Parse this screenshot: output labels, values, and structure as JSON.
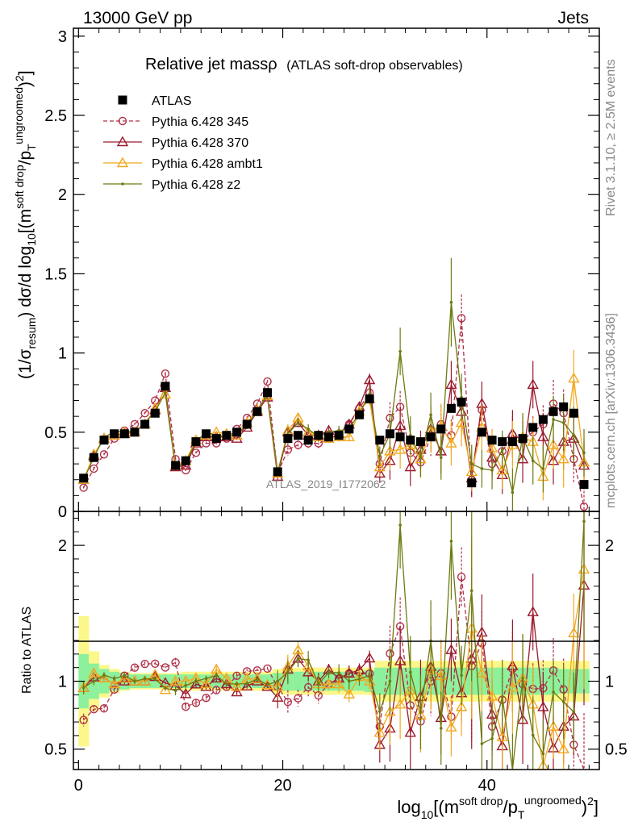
{
  "header": {
    "energy_label": "13000 GeV pp",
    "process_label": "Jets"
  },
  "side_labels": {
    "rivet": "Rivet 3.1.10, ≥ 2.5M events",
    "source": "mcplots.cern.ch [arXiv:1306.3436]"
  },
  "watermark": "ATLAS_2019_I1772062",
  "colors": {
    "atlas": "#000000",
    "p345": "#b03048",
    "p370": "#9c1a2e",
    "ambt1": "#f2a81e",
    "z2": "#6e7a10",
    "band_inner": "#8cf09c",
    "band_outer": "#fbf78a"
  },
  "chart_data": {
    "type": "line",
    "title_main": "Relative jet massρ",
    "title_sub": "(ATLAS soft-drop observables)",
    "y_label_main": {
      "lead": "(1/σ",
      "sub1": "resum",
      "mid": ") dσ/d log",
      "sub2": "10",
      "tail": "[(m",
      "sup1": "soft drop",
      "tail2": "/p",
      "sub3": "T",
      "sup2": "ungroomed",
      "tail3": ")",
      "sup3": "2",
      "end": "]"
    },
    "y_label_ratio": "Ratio to ATLAS",
    "x_label": {
      "lead": "log",
      "sub1": "10",
      "mid": "[(m",
      "sup1": "soft drop",
      "mid2": "/p",
      "sub2": "T",
      "sup2": "ungroomed",
      "tail": ")",
      "sup3": "2",
      "end": "]"
    },
    "x_range": [
      -0.5,
      51.0
    ],
    "y_range_main": [
      0.0,
      3.05
    ],
    "y_range_ratio": [
      0.35,
      2.25
    ],
    "x_ticks": [
      "0",
      "20",
      "40"
    ],
    "x_tick_values": [
      0,
      20,
      40
    ],
    "y_ticks_main": [
      "0",
      "0.5",
      "1",
      "1.5",
      "2",
      "2.5",
      "3"
    ],
    "y_tick_values_main": [
      0,
      0.5,
      1,
      1.5,
      2,
      2.5,
      3
    ],
    "y_ticks_ratio": [
      "0.5",
      "1",
      "2"
    ],
    "y_tick_values_ratio": [
      0.5,
      1,
      2
    ],
    "x": [
      0.5,
      1.5,
      2.5,
      3.5,
      4.5,
      5.5,
      6.5,
      7.5,
      8.5,
      9.5,
      10.5,
      11.5,
      12.5,
      13.5,
      14.5,
      15.5,
      16.5,
      17.5,
      18.5,
      19.5,
      20.5,
      21.5,
      22.5,
      23.5,
      24.5,
      25.5,
      26.5,
      27.5,
      28.5,
      29.5,
      30.5,
      31.5,
      32.5,
      33.5,
      34.5,
      35.5,
      36.5,
      37.5,
      38.5,
      39.5,
      40.5,
      41.5,
      42.5,
      43.5,
      44.5,
      45.5,
      46.5,
      47.5,
      48.5,
      49.5
    ],
    "legend": [
      {
        "name": "ATLAS",
        "key": "atlas"
      },
      {
        "name": "Pythia 6.428 345",
        "key": "p345"
      },
      {
        "name": "Pythia 6.428 370",
        "key": "p370"
      },
      {
        "name": "Pythia 6.428 ambt1",
        "key": "ambt1"
      },
      {
        "name": "Pythia 6.428 z2",
        "key": "z2"
      }
    ],
    "series": [
      {
        "key": "atlas",
        "name": "ATLAS",
        "marker": "square",
        "values": [
          0.21,
          0.34,
          0.45,
          0.49,
          0.49,
          0.5,
          0.55,
          0.62,
          0.79,
          0.29,
          0.32,
          0.44,
          0.49,
          0.46,
          0.48,
          0.5,
          0.55,
          0.63,
          0.75,
          0.25,
          0.46,
          0.48,
          0.45,
          0.48,
          0.47,
          0.48,
          0.52,
          0.61,
          0.71,
          0.45,
          0.49,
          0.47,
          0.45,
          0.44,
          0.47,
          0.52,
          0.65,
          0.69,
          0.18,
          0.5,
          0.45,
          0.44,
          0.44,
          0.46,
          0.53,
          0.58,
          0.63,
          0.66,
          0.62,
          0.17
        ],
        "errors": [
          0.01,
          0.01,
          0.01,
          0.01,
          0.01,
          0.01,
          0.01,
          0.01,
          0.01,
          0.01,
          0.01,
          0.01,
          0.01,
          0.01,
          0.01,
          0.01,
          0.01,
          0.01,
          0.01,
          0.01,
          0.01,
          0.01,
          0.01,
          0.01,
          0.01,
          0.01,
          0.01,
          0.01,
          0.01,
          0.01,
          0.01,
          0.01,
          0.01,
          0.01,
          0.01,
          0.01,
          0.01,
          0.01,
          0.01,
          0.01,
          0.01,
          0.01,
          0.01,
          0.01,
          0.01,
          0.01,
          0.01,
          0.01,
          0.01,
          0.01
        ]
      },
      {
        "key": "p345",
        "name": "Pythia 6.428 345",
        "marker": "circle",
        "dashed": true,
        "values": [
          0.15,
          0.27,
          0.36,
          0.46,
          0.51,
          0.55,
          0.62,
          0.7,
          0.87,
          0.33,
          0.26,
          0.37,
          0.43,
          0.43,
          0.46,
          0.52,
          0.59,
          0.68,
          0.82,
          0.24,
          0.39,
          0.42,
          0.43,
          0.43,
          0.46,
          0.49,
          0.55,
          0.65,
          0.75,
          0.3,
          0.59,
          0.66,
          0.37,
          0.31,
          0.47,
          0.55,
          0.48,
          1.22,
          0.2,
          0.64,
          0.3,
          0.38,
          0.48,
          0.45,
          0.5,
          0.55,
          0.68,
          0.62,
          0.33,
          0.03
        ],
        "errors": [
          0.01,
          0.01,
          0.01,
          0.01,
          0.01,
          0.01,
          0.01,
          0.01,
          0.01,
          0.01,
          0.01,
          0.01,
          0.01,
          0.01,
          0.01,
          0.01,
          0.01,
          0.01,
          0.01,
          0.02,
          0.04,
          0.03,
          0.03,
          0.03,
          0.02,
          0.03,
          0.03,
          0.03,
          0.04,
          0.05,
          0.1,
          0.1,
          0.1,
          0.1,
          0.12,
          0.12,
          0.1,
          0.15,
          0.1,
          0.12,
          0.1,
          0.1,
          0.12,
          0.12,
          0.1,
          0.12,
          0.15,
          0.15,
          0.15,
          0.1
        ]
      },
      {
        "key": "p370",
        "name": "Pythia 6.428 370",
        "marker": "triangle",
        "values": [
          0.2,
          0.35,
          0.46,
          0.48,
          0.49,
          0.5,
          0.55,
          0.64,
          0.78,
          0.28,
          0.29,
          0.43,
          0.47,
          0.47,
          0.47,
          0.46,
          0.53,
          0.63,
          0.72,
          0.22,
          0.5,
          0.56,
          0.48,
          0.48,
          0.51,
          0.49,
          0.55,
          0.66,
          0.83,
          0.24,
          0.32,
          0.54,
          0.28,
          0.39,
          0.52,
          0.38,
          0.8,
          0.63,
          0.21,
          0.68,
          0.34,
          0.23,
          0.49,
          0.33,
          0.8,
          0.47,
          0.32,
          0.44,
          0.46,
          0.29
        ],
        "errors": [
          0.01,
          0.01,
          0.01,
          0.01,
          0.01,
          0.01,
          0.01,
          0.01,
          0.01,
          0.01,
          0.01,
          0.01,
          0.01,
          0.01,
          0.01,
          0.01,
          0.01,
          0.01,
          0.01,
          0.02,
          0.04,
          0.03,
          0.03,
          0.03,
          0.02,
          0.03,
          0.03,
          0.03,
          0.04,
          0.06,
          0.12,
          0.12,
          0.12,
          0.12,
          0.14,
          0.14,
          0.15,
          0.15,
          0.12,
          0.14,
          0.12,
          0.12,
          0.15,
          0.15,
          0.15,
          0.15,
          0.15,
          0.18,
          0.18,
          0.15
        ]
      },
      {
        "key": "ambt1",
        "name": "Pythia 6.428 ambt1",
        "marker": "triangle",
        "values": [
          0.2,
          0.36,
          0.46,
          0.48,
          0.5,
          0.5,
          0.55,
          0.65,
          0.74,
          0.29,
          0.32,
          0.45,
          0.48,
          0.5,
          0.49,
          0.48,
          0.56,
          0.64,
          0.73,
          0.24,
          0.51,
          0.59,
          0.5,
          0.47,
          0.46,
          0.47,
          0.47,
          0.63,
          0.71,
          0.28,
          0.38,
          0.39,
          0.42,
          0.33,
          0.51,
          0.54,
          0.43,
          0.56,
          0.25,
          0.53,
          0.4,
          0.26,
          0.42,
          0.47,
          0.44,
          0.22,
          0.42,
          0.33,
          0.84,
          0.31
        ],
        "errors": [
          0.01,
          0.01,
          0.01,
          0.01,
          0.01,
          0.01,
          0.01,
          0.01,
          0.01,
          0.01,
          0.01,
          0.01,
          0.01,
          0.01,
          0.01,
          0.01,
          0.01,
          0.01,
          0.01,
          0.02,
          0.04,
          0.03,
          0.03,
          0.03,
          0.02,
          0.03,
          0.03,
          0.03,
          0.04,
          0.06,
          0.12,
          0.12,
          0.12,
          0.12,
          0.14,
          0.14,
          0.14,
          0.15,
          0.12,
          0.14,
          0.12,
          0.12,
          0.15,
          0.15,
          0.15,
          0.15,
          0.15,
          0.18,
          0.18,
          0.15
        ]
      },
      {
        "key": "z2",
        "name": "Pythia 6.428 z2",
        "marker": "dot",
        "values": [
          0.2,
          0.34,
          0.47,
          0.5,
          0.51,
          0.5,
          0.56,
          0.63,
          0.75,
          0.27,
          0.31,
          0.44,
          0.5,
          0.48,
          0.47,
          0.49,
          0.54,
          0.64,
          0.73,
          0.25,
          0.49,
          0.56,
          0.52,
          0.47,
          0.5,
          0.51,
          0.52,
          0.62,
          0.74,
          0.35,
          0.49,
          1.01,
          0.48,
          0.34,
          0.61,
          0.34,
          1.32,
          0.72,
          0.3,
          0.27,
          0.26,
          0.39,
          0.12,
          0.47,
          0.32,
          0.27,
          0.58,
          0.56,
          0.48,
          0.37
        ],
        "errors": [
          0.01,
          0.01,
          0.01,
          0.01,
          0.01,
          0.01,
          0.01,
          0.01,
          0.01,
          0.01,
          0.01,
          0.01,
          0.01,
          0.01,
          0.01,
          0.01,
          0.01,
          0.01,
          0.01,
          0.02,
          0.04,
          0.03,
          0.03,
          0.03,
          0.02,
          0.03,
          0.03,
          0.03,
          0.04,
          0.06,
          0.12,
          0.15,
          0.12,
          0.12,
          0.14,
          0.14,
          0.28,
          0.15,
          0.12,
          0.12,
          0.12,
          0.12,
          0.15,
          0.15,
          0.15,
          0.15,
          0.15,
          0.18,
          0.18,
          0.15
        ]
      }
    ],
    "ratio_band_inner": [
      0.2,
      0.13,
      0.09,
      0.07,
      0.06,
      0.05,
      0.05,
      0.05,
      0.05,
      0.05,
      0.05,
      0.05,
      0.05,
      0.05,
      0.05,
      0.05,
      0.05,
      0.05,
      0.05,
      0.06,
      0.07,
      0.07,
      0.07,
      0.07,
      0.07,
      0.07,
      0.07,
      0.07,
      0.08,
      0.1,
      0.1,
      0.1,
      0.1,
      0.1,
      0.1,
      0.1,
      0.1,
      0.1,
      0.1,
      0.1,
      0.1,
      0.1,
      0.1,
      0.1,
      0.1,
      0.1,
      0.1,
      0.09,
      0.09,
      0.09
    ],
    "ratio_band_outer": [
      0.48,
      0.22,
      0.12,
      0.09,
      0.07,
      0.06,
      0.06,
      0.06,
      0.06,
      0.06,
      0.07,
      0.07,
      0.07,
      0.07,
      0.07,
      0.07,
      0.07,
      0.07,
      0.07,
      0.09,
      0.1,
      0.1,
      0.1,
      0.1,
      0.1,
      0.1,
      0.1,
      0.1,
      0.1,
      0.15,
      0.15,
      0.15,
      0.15,
      0.15,
      0.15,
      0.15,
      0.15,
      0.15,
      0.15,
      0.15,
      0.15,
      0.15,
      0.15,
      0.15,
      0.15,
      0.15,
      0.15,
      0.15,
      0.15,
      0.15
    ]
  }
}
